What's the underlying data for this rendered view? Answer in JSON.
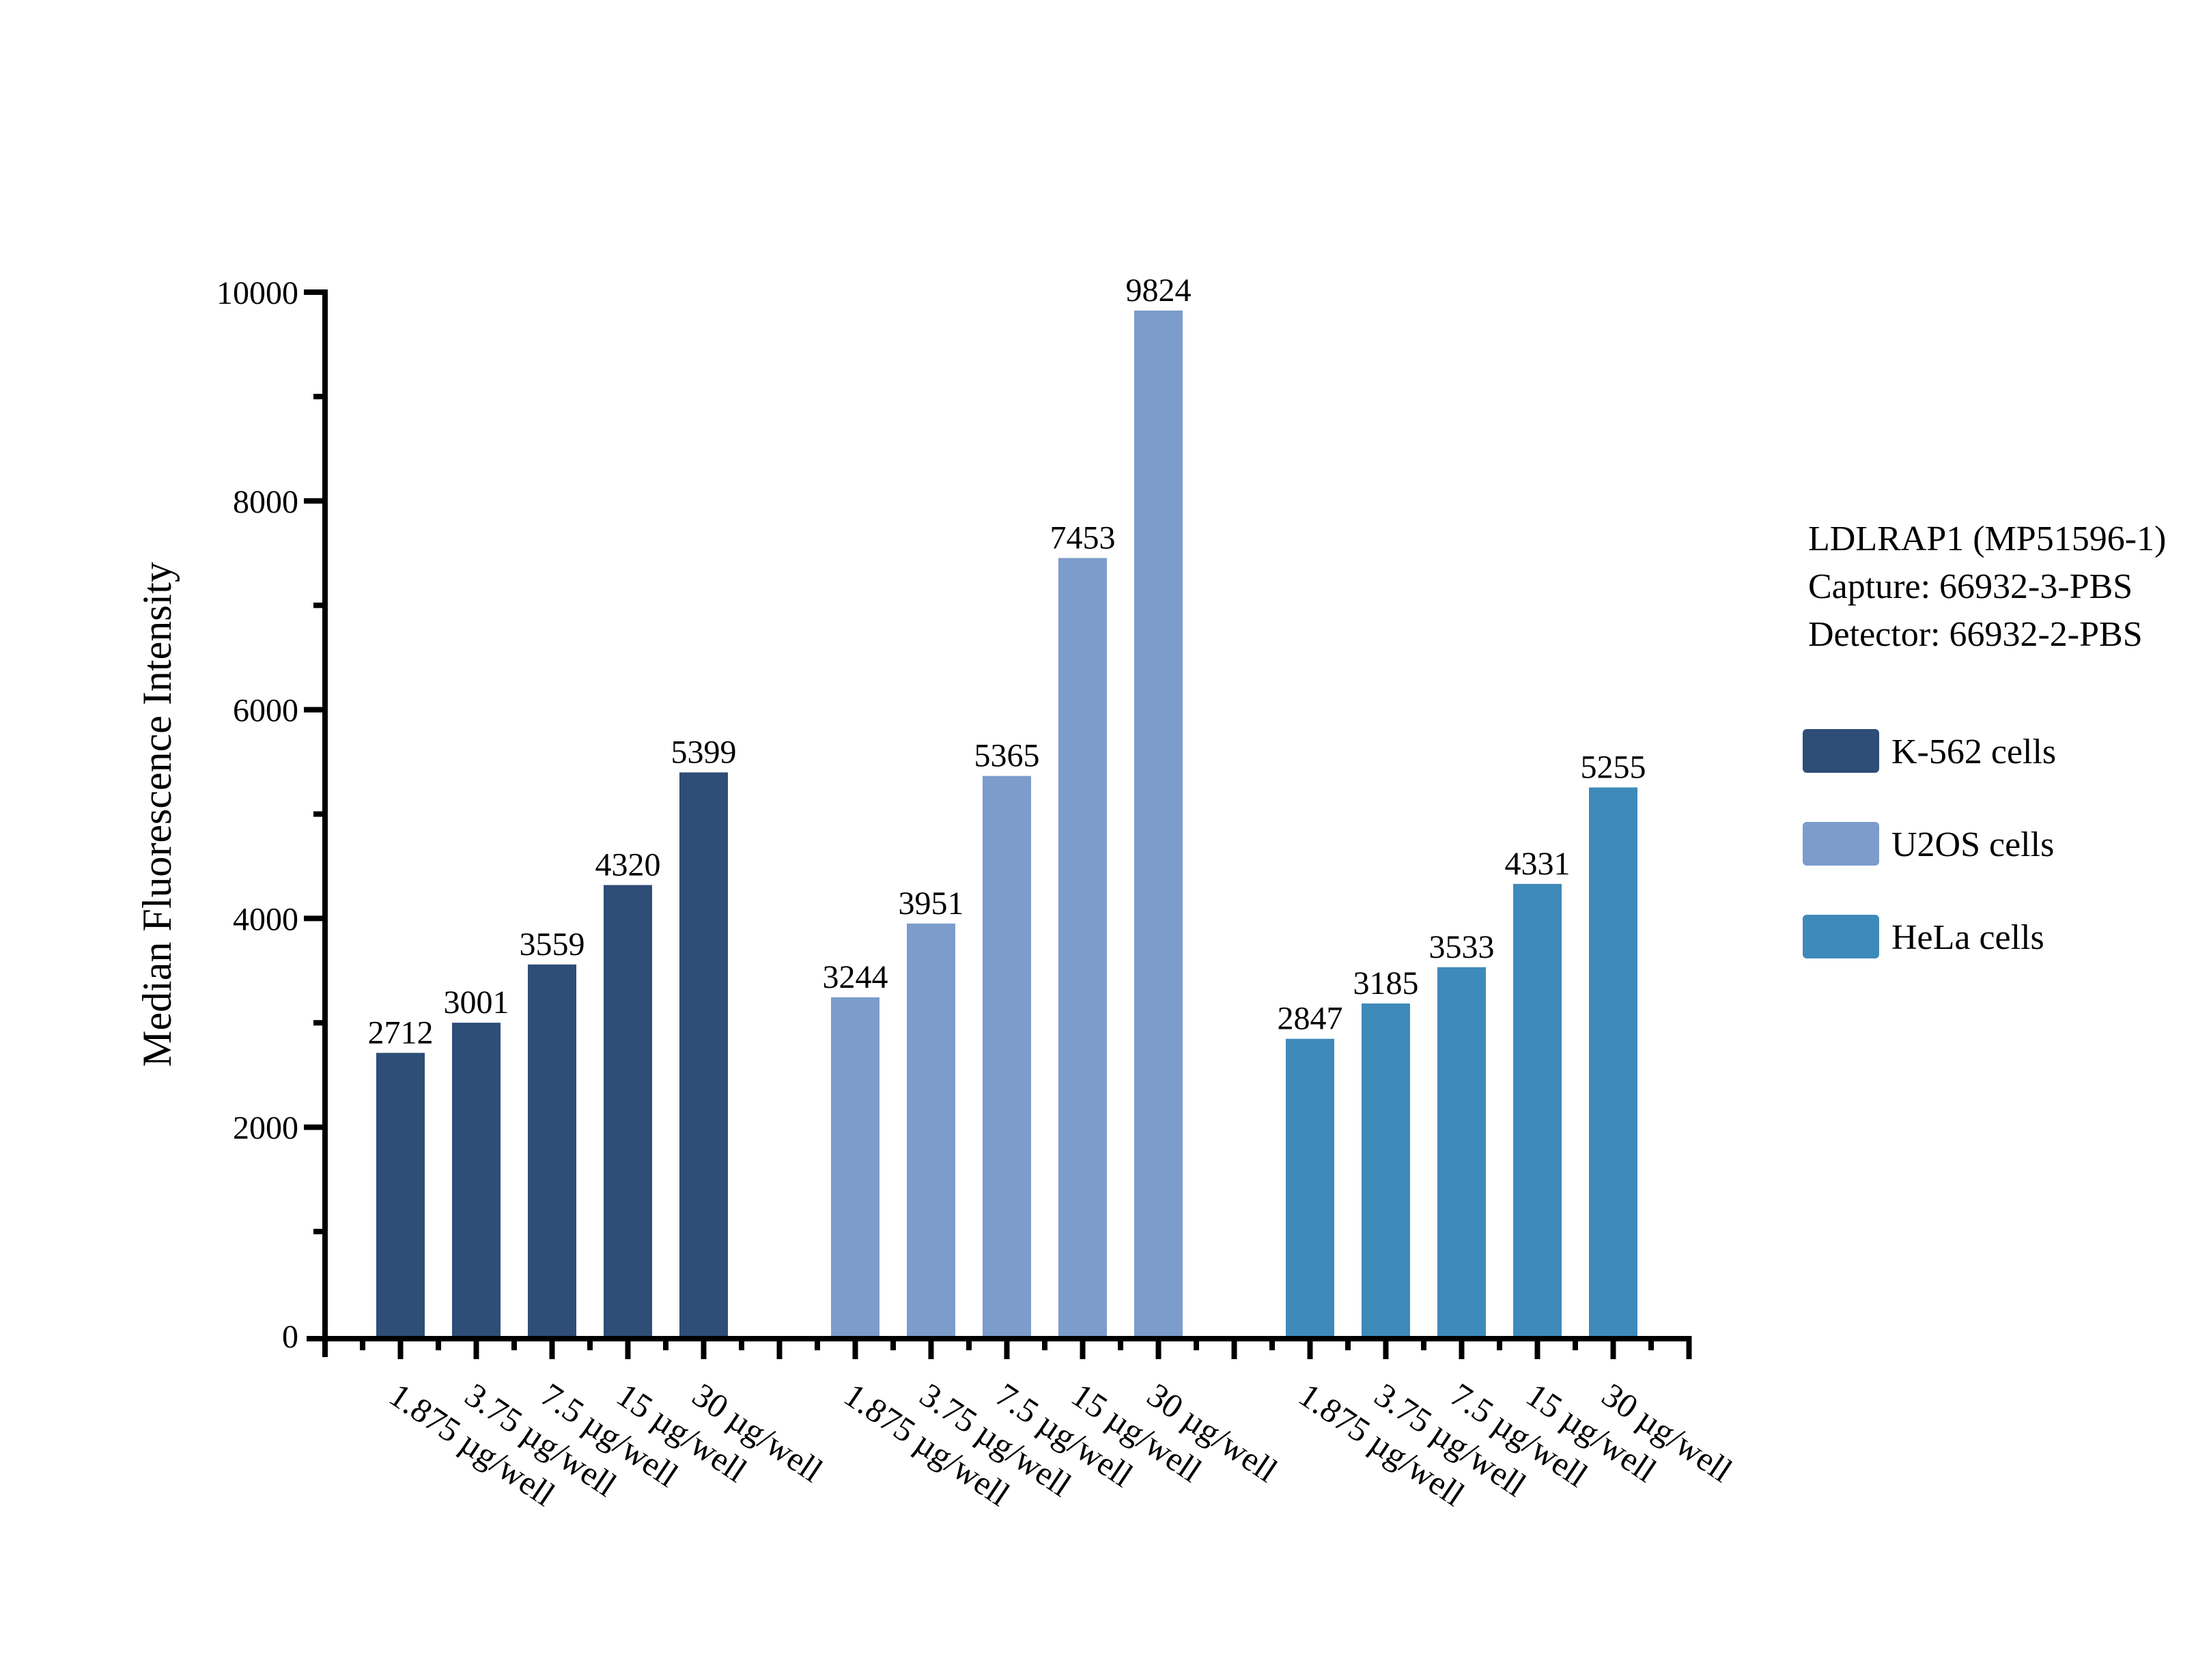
{
  "chart_data": {
    "type": "bar",
    "title": "",
    "xlabel": "",
    "ylabel": "Median Fluorescence Intensity",
    "ylim": [
      0,
      10000
    ],
    "y_major_tick_step": 2000,
    "y_minor_tick_step": 1000,
    "grid": false,
    "legend_position": "right",
    "value_labels_shown": true,
    "categories": [
      "1.875 µg/well",
      "3.75 µg/well",
      "7.5 µg/well",
      "15 µg/well",
      "30 µg/well"
    ],
    "series": [
      {
        "name": "K-562 cells",
        "color": "#2E4D77",
        "values": [
          2712,
          3001,
          3559,
          4320,
          5399
        ]
      },
      {
        "name": "U2OS cells",
        "color": "#7C9CCB",
        "values": [
          3244,
          3951,
          5365,
          7453,
          9824
        ]
      },
      {
        "name": "HeLa cells",
        "color": "#3E8ABA",
        "values": [
          2847,
          3185,
          3533,
          4331,
          5255
        ]
      }
    ],
    "annotation": {
      "lines": [
        "LDLRAP1 (MP51596-1)",
        "Capture: 66932-3-PBS",
        "Detector: 66932-2-PBS"
      ]
    },
    "axis_color": "#000000",
    "text_color": "#000000"
  }
}
